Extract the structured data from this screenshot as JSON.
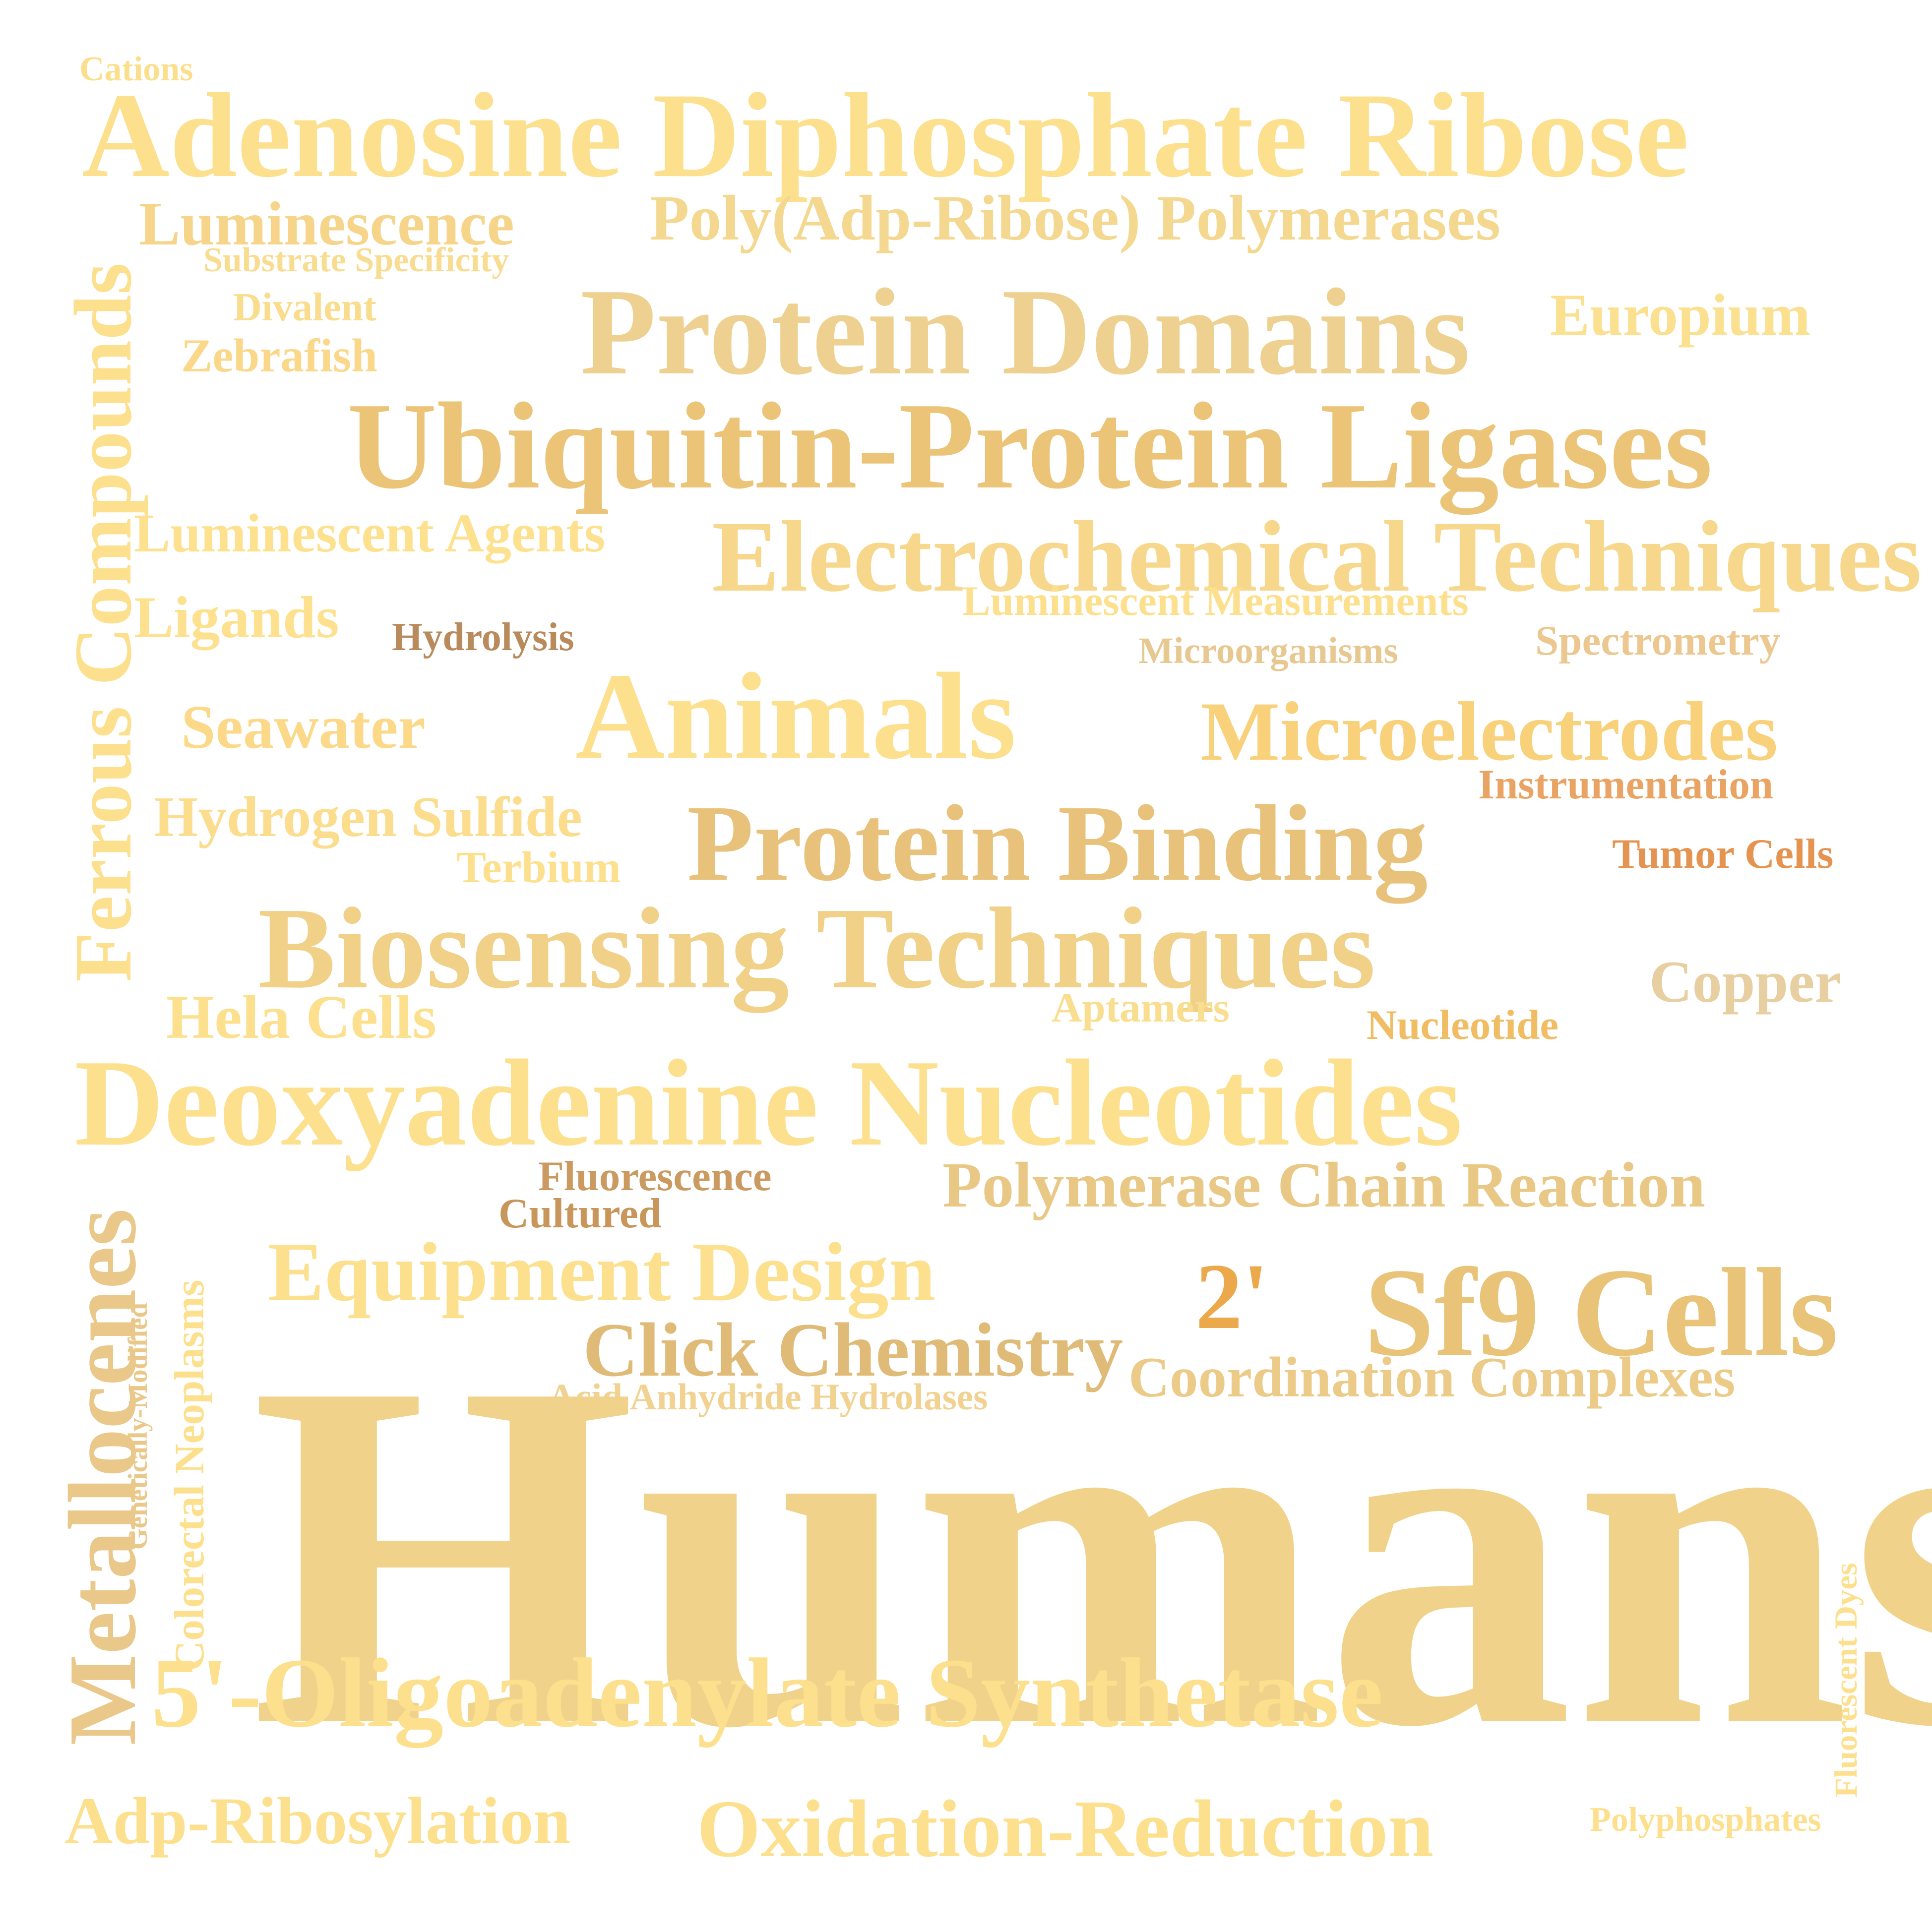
{
  "words": [
    {
      "text": "Cations",
      "color": "#fcdf8d"
    },
    {
      "text": "Adenosine Diphosphate Ribose",
      "color": "#fde08e"
    },
    {
      "text": "Luminescence",
      "color": "#f6d58a"
    },
    {
      "text": "Poly(Adp-Ribose) Polymerases",
      "color": "#f4d88f"
    },
    {
      "text": "Substrate Specificity",
      "color": "#f8dc90"
    },
    {
      "text": "Divalent",
      "color": "#f9dd8c"
    },
    {
      "text": "Protein Domains",
      "color": "#eed190"
    },
    {
      "text": "Europium",
      "color": "#fbe08f"
    },
    {
      "text": "Zebrafish",
      "color": "#fbd789"
    },
    {
      "text": "Ubiquitin-Protein Ligases",
      "color": "#ebc477"
    },
    {
      "text": "Luminescent Agents",
      "color": "#fde18e"
    },
    {
      "text": "Electrochemical Techniques",
      "color": "#f7d78b"
    },
    {
      "text": "Luminescent Measurements",
      "color": "#fde08d"
    },
    {
      "text": "Ligands",
      "color": "#fde18e"
    },
    {
      "text": "Hydrolysis",
      "color": "#b98a5b"
    },
    {
      "text": "Microorganisms",
      "color": "#e7c890"
    },
    {
      "text": "Spectrometry",
      "color": "#ecc890"
    },
    {
      "text": "Animals",
      "color": "#fde08e"
    },
    {
      "text": "Seawater",
      "color": "#fbd989"
    },
    {
      "text": "Microelectrodes",
      "color": "#f8d17a"
    },
    {
      "text": "Instrumentation",
      "color": "#e9a464"
    },
    {
      "text": "Hydrogen Sulfide",
      "color": "#fbdd8d"
    },
    {
      "text": "Protein Binding",
      "color": "#e8c27a"
    },
    {
      "text": "Terbium",
      "color": "#fde08e"
    },
    {
      "text": "Tumor Cells",
      "color": "#e49450"
    },
    {
      "text": "Biosensing Techniques",
      "color": "#f1d088"
    },
    {
      "text": "Copper",
      "color": "#e8cfa1"
    },
    {
      "text": "Hela Cells",
      "color": "#fde08e"
    },
    {
      "text": "Aptamers",
      "color": "#f9de8f"
    },
    {
      "text": "Nucleotide",
      "color": "#f0bd64"
    },
    {
      "text": "Deoxyadenine Nucleotides",
      "color": "#fde08e"
    },
    {
      "text": "Fluorescence",
      "color": "#ca9a60"
    },
    {
      "text": "Cultured",
      "color": "#c8955b"
    },
    {
      "text": "Polymerase Chain Reaction",
      "color": "#e8c884"
    },
    {
      "text": "Equipment Design",
      "color": "#fde08e"
    },
    {
      "text": "2'",
      "color": "#eba94c"
    },
    {
      "text": "Sf9 Cells",
      "color": "#e8c378"
    },
    {
      "text": "Click Chemistry",
      "color": "#dfbb77"
    },
    {
      "text": "Coordination Complexes",
      "color": "#eccb88"
    },
    {
      "text": "Acid Anhydride Hydrolases",
      "color": "#f1d290"
    },
    {
      "text": "Humans",
      "color": "#f0d28a"
    },
    {
      "text": "5'-Oligoadenylate Synthetase",
      "color": "#fde08e"
    },
    {
      "text": "Adp-Ribosylation",
      "color": "#fde08e"
    },
    {
      "text": "Oxidation-Reduction",
      "color": "#fde08e"
    },
    {
      "text": "Polyphosphates",
      "color": "#fde08e"
    },
    {
      "text": "Ferrous Compounds",
      "color": "#fde08e"
    },
    {
      "text": "Metallocenes",
      "color": "#e9c88a"
    },
    {
      "text": "Genetically-Modified",
      "color": "#e9c88a"
    },
    {
      "text": "Colorectal Neoplasms",
      "color": "#fde08e"
    },
    {
      "text": "Fluorescent Dyes",
      "color": "#fde08e"
    }
  ]
}
